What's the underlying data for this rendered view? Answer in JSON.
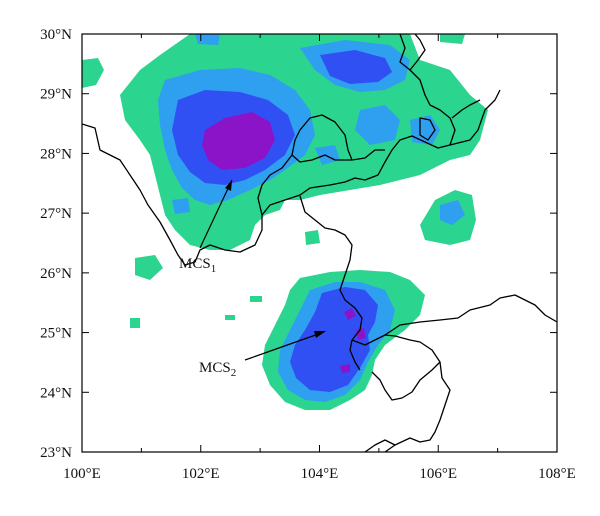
{
  "map": {
    "x_ticks": [
      "100°E",
      "102°E",
      "104°E",
      "106°E",
      "108°E"
    ],
    "y_ticks": [
      "30°N",
      "29°N",
      "28°N",
      "27°N",
      "26°N",
      "25°N",
      "24°N",
      "23°N"
    ],
    "annotations": [
      {
        "id": "mcs1",
        "base": "MCS",
        "sub": "1"
      },
      {
        "id": "mcs2",
        "base": "MCS",
        "sub": "2"
      }
    ],
    "colors": {
      "level1": "#2bd48f",
      "level2": "#2f9ff0",
      "level3": "#3050f4",
      "level4": "#8c14c8",
      "border": "#000000"
    }
  }
}
